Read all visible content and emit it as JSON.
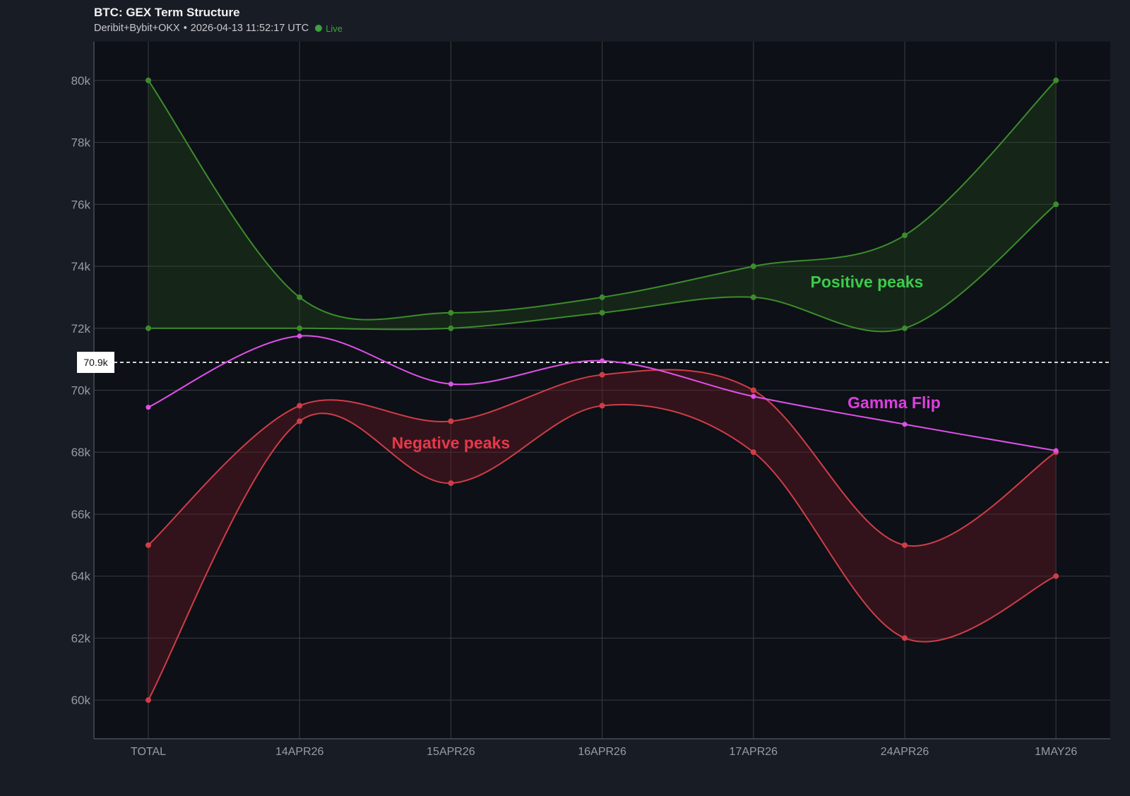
{
  "header": {
    "title": "BTC: GEX Term Structure",
    "source": "Deribit+Bybit+OKX",
    "separator": "•",
    "timestamp": "2026-04-13 11:52:17 UTC",
    "status": "Live"
  },
  "chart_data": {
    "type": "line",
    "title": "BTC: GEX Term Structure",
    "categories": [
      "TOTAL",
      "14APR26",
      "15APR26",
      "16APR26",
      "17APR26",
      "24APR26",
      "1MAY26"
    ],
    "ylim": [
      58750,
      81250
    ],
    "yticks": [
      60000,
      62000,
      64000,
      66000,
      68000,
      70000,
      72000,
      74000,
      76000,
      78000,
      80000
    ],
    "ytick_labels": [
      "60k",
      "62k",
      "64k",
      "66k",
      "68k",
      "70k",
      "72k",
      "74k",
      "76k",
      "78k",
      "80k"
    ],
    "grid": true,
    "bands": [
      {
        "name": "Positive peaks",
        "color": "#3d8c2c",
        "fill": "rgba(38,80,28,0.35)",
        "upper": [
          80000,
          73000,
          72500,
          73000,
          74000,
          75000,
          80000
        ],
        "lower": [
          72000,
          72000,
          72000,
          72500,
          73000,
          72000,
          76000
        ]
      },
      {
        "name": "Negative peaks",
        "color": "#d03d48",
        "fill": "rgba(95,24,34,0.45)",
        "upper": [
          65000,
          69500,
          69000,
          70500,
          70000,
          65000,
          68000
        ],
        "lower": [
          60000,
          69000,
          67000,
          69500,
          68000,
          62000,
          64000
        ]
      }
    ],
    "series": [
      {
        "name": "Gamma Flip",
        "color": "#e050ea",
        "values": [
          69450,
          71750,
          70200,
          70950,
          69800,
          68900,
          68050
        ]
      }
    ],
    "spot": {
      "value": 70900,
      "label": "70.9k"
    },
    "annotations": [
      {
        "text": "Positive peaks",
        "x": 4.75,
        "y": 73500,
        "color": "#3ec94c"
      },
      {
        "text": "Gamma Flip",
        "x": 4.93,
        "y": 69600,
        "color": "#de3ee0"
      },
      {
        "text": "Negative peaks",
        "x": 2.0,
        "y": 68300,
        "color": "#e8384a"
      }
    ]
  }
}
